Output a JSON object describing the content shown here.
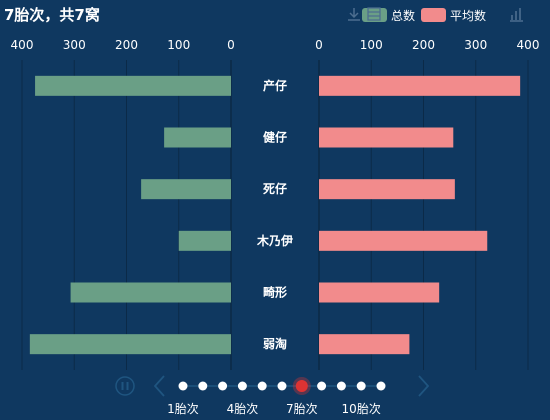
{
  "title": "7胎次，共7窝",
  "legend": {
    "items": [
      {
        "label": "总数",
        "color": "#6a9f86"
      },
      {
        "label": "平均数",
        "color": "#f28b8c"
      }
    ]
  },
  "toolbox": {
    "icons": [
      "download-icon",
      "data-view-icon",
      "bar-chart-icon"
    ]
  },
  "chart_data": [
    {
      "type": "bar",
      "orientation": "horizontal",
      "direction": "reversed",
      "categories": [
        "产仔",
        "健仔",
        "死仔",
        "木乃伊",
        "畸形",
        "弱淘"
      ],
      "series": [
        {
          "name": "总数",
          "values": [
            375,
            128,
            172,
            100,
            307,
            385
          ]
        }
      ],
      "xlim": [
        0,
        400
      ],
      "ticks": [
        "400",
        "300",
        "200",
        "100",
        "0"
      ],
      "grid": true,
      "color": "#6a9f86"
    },
    {
      "type": "bar",
      "orientation": "horizontal",
      "categories": [
        "产仔",
        "健仔",
        "死仔",
        "木乃伊",
        "畸形",
        "弱淘"
      ],
      "series": [
        {
          "name": "平均数",
          "values": [
            385,
            257,
            260,
            322,
            230,
            173
          ]
        }
      ],
      "xlim": [
        0,
        400
      ],
      "ticks": [
        "0",
        "100",
        "200",
        "300",
        "400"
      ],
      "grid": true,
      "color": "#f28b8c"
    }
  ],
  "timeline": {
    "labels": [
      "1胎次",
      "4胎次",
      "7胎次",
      "10胎次"
    ],
    "points": 11,
    "current": 7,
    "active_color": "#dd3333",
    "point_color": "#ffffff",
    "control_color": "#1f5580"
  }
}
